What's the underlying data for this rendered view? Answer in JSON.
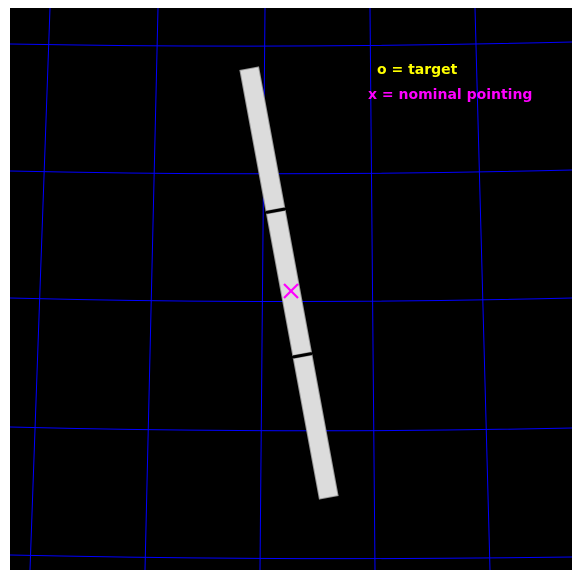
{
  "legend": {
    "target_label": "o = target",
    "target_color": "#ffff00",
    "pointing_label": "x = nominal pointing",
    "pointing_color": "#ff00ff"
  },
  "colors": {
    "background": "#000000",
    "grid": "#0000ff",
    "slit_fill": "#dcdcdc",
    "slit_edge": "#9a9a9a",
    "slit_gap": "#000000",
    "page_border": "#ffffff"
  },
  "slit": {
    "segments": 3,
    "marker": "x"
  }
}
